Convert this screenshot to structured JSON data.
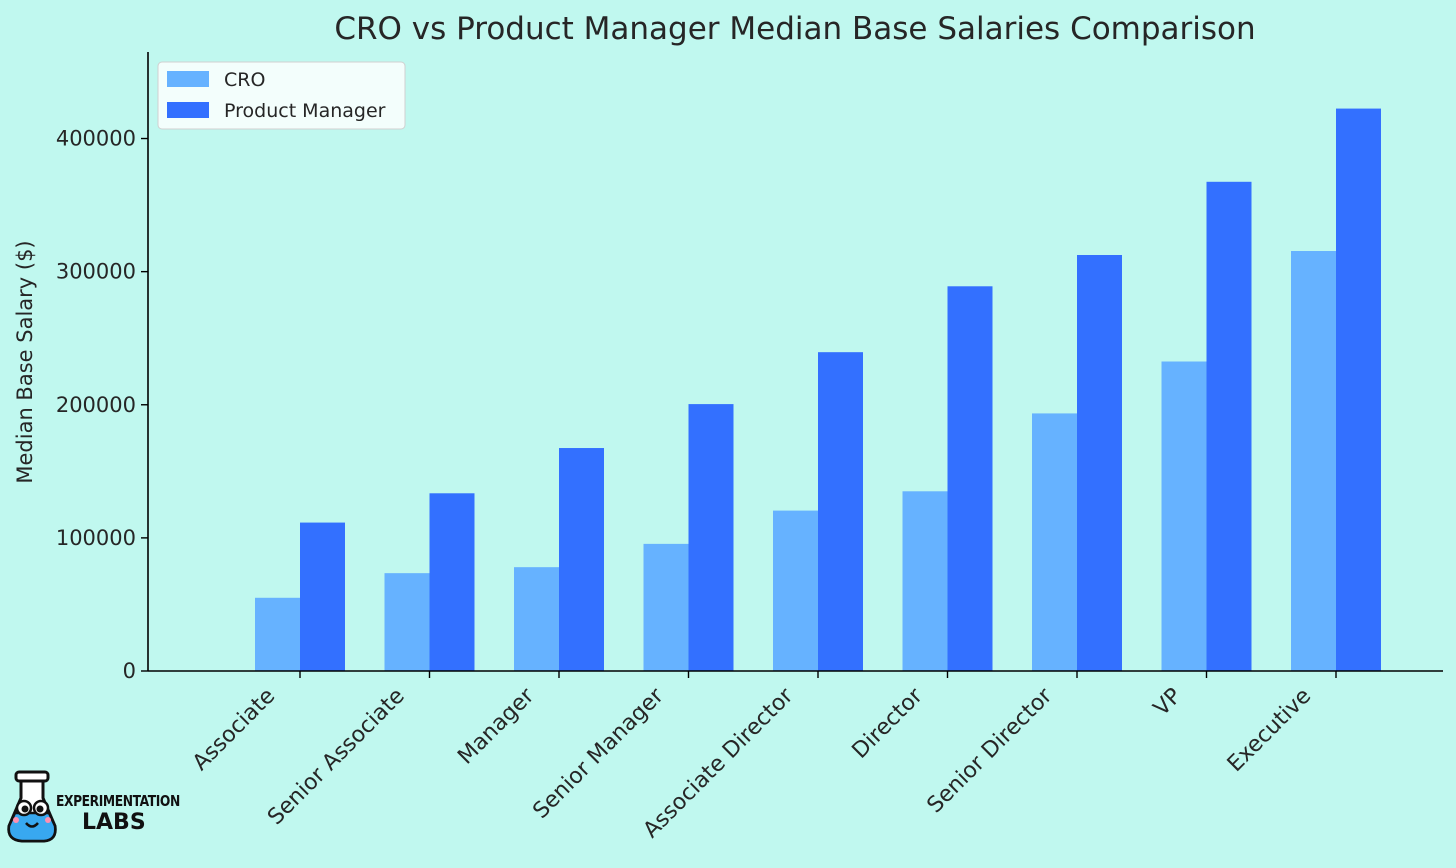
{
  "chart_data": {
    "type": "bar",
    "title": "CRO vs Product Manager Median Base Salaries Comparison",
    "xlabel": "",
    "ylabel": "Median Base Salary ($)",
    "ylim": [
      0,
      465000
    ],
    "yticks": [
      0,
      100000,
      200000,
      300000,
      400000
    ],
    "categories": [
      "Associate",
      "Senior Associate",
      "Manager",
      "Senior Manager",
      "Associate Director",
      "Director",
      "Senior Director",
      "VP",
      "Executive"
    ],
    "series": [
      {
        "name": "CRO",
        "color": "#66b2ff",
        "values": [
          55000,
          73500,
          78000,
          95500,
          120500,
          135000,
          193500,
          232500,
          315500
        ]
      },
      {
        "name": "Product Manager",
        "color": "#3370ff",
        "values": [
          111500,
          133500,
          167500,
          200500,
          239500,
          289000,
          312500,
          367500,
          422500
        ]
      }
    ],
    "legend_position": "top-left",
    "grid": false
  },
  "logo": {
    "line1": "EXPERIMENTATION",
    "line2": "LABS"
  }
}
